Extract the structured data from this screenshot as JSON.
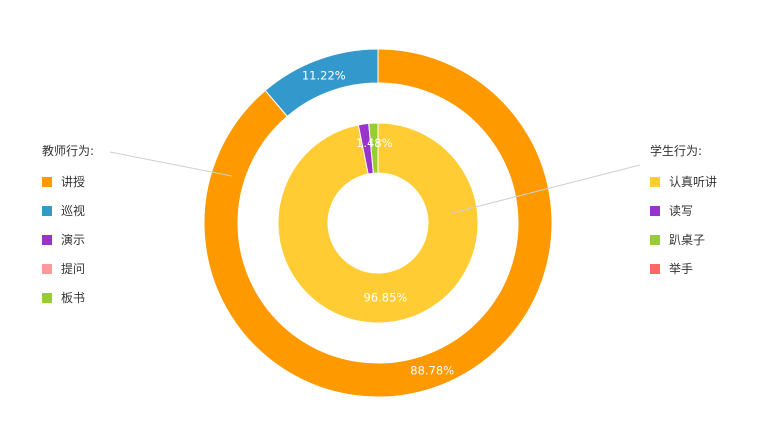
{
  "chart_data": [
    {
      "type": "pie",
      "title": "",
      "legend_title": "教师行为:",
      "legend_position": "left",
      "categories": [
        "讲授",
        "巡视",
        "演示",
        "提问",
        "板书"
      ],
      "values": [
        88.78,
        11.22,
        0,
        0,
        0
      ],
      "colors": [
        "#ff9900",
        "#3398cc",
        "#9933cc",
        "#ff9999",
        "#99cc33"
      ],
      "labels": [
        "88.78%",
        "11.22%",
        "",
        "",
        ""
      ]
    },
    {
      "type": "pie",
      "title": "",
      "legend_title": "学生行为:",
      "legend_position": "right",
      "categories": [
        "认真听讲",
        "读写",
        "趴桌子",
        "举手"
      ],
      "values": [
        96.85,
        1.67,
        1.48,
        0
      ],
      "colors": [
        "#ffcc33",
        "#9933cc",
        "#99cc33",
        "#ff6666"
      ],
      "labels": [
        "96.85%",
        "",
        "1.48%",
        ""
      ]
    }
  ]
}
